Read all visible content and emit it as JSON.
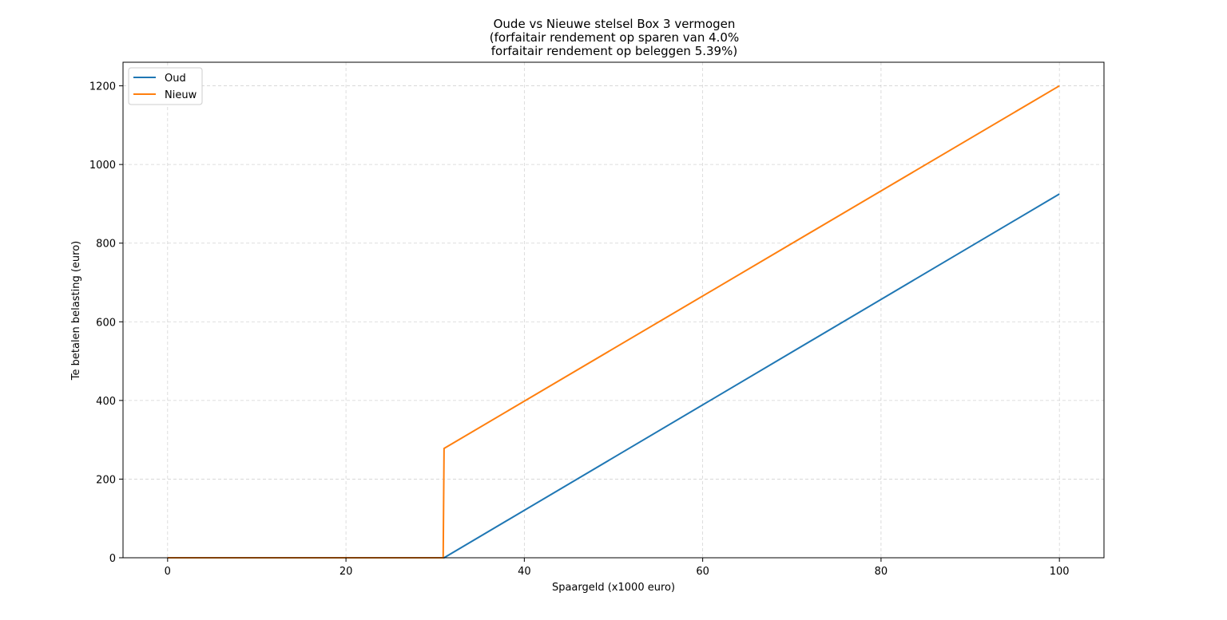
{
  "chart_data": {
    "type": "line",
    "title_lines": [
      "Oude vs Nieuwe stelsel Box 3 vermogen",
      " (forfaitair rendement op sparen van 4.0%",
      "forfaitair rendement op beleggen 5.39%)"
    ],
    "xlabel": "Spaargeld (x1000 euro)",
    "ylabel": "Te betalen belasting (euro)",
    "xlim": [
      -5,
      105
    ],
    "ylim": [
      0,
      1260
    ],
    "xticks": [
      0,
      20,
      40,
      60,
      80,
      100
    ],
    "yticks": [
      0,
      200,
      400,
      600,
      800,
      1000,
      1200
    ],
    "grid": true,
    "legend_position": "top-left",
    "series": [
      {
        "name": "Oud",
        "color": "#1f77b4",
        "points": [
          [
            0,
            0
          ],
          [
            31,
            0
          ],
          [
            100,
            925
          ]
        ]
      },
      {
        "name": "Nieuw",
        "color": "#ff7f0e",
        "points": [
          [
            0,
            0
          ],
          [
            30.9,
            0
          ],
          [
            31,
            278
          ],
          [
            100,
            1200
          ]
        ]
      }
    ]
  }
}
